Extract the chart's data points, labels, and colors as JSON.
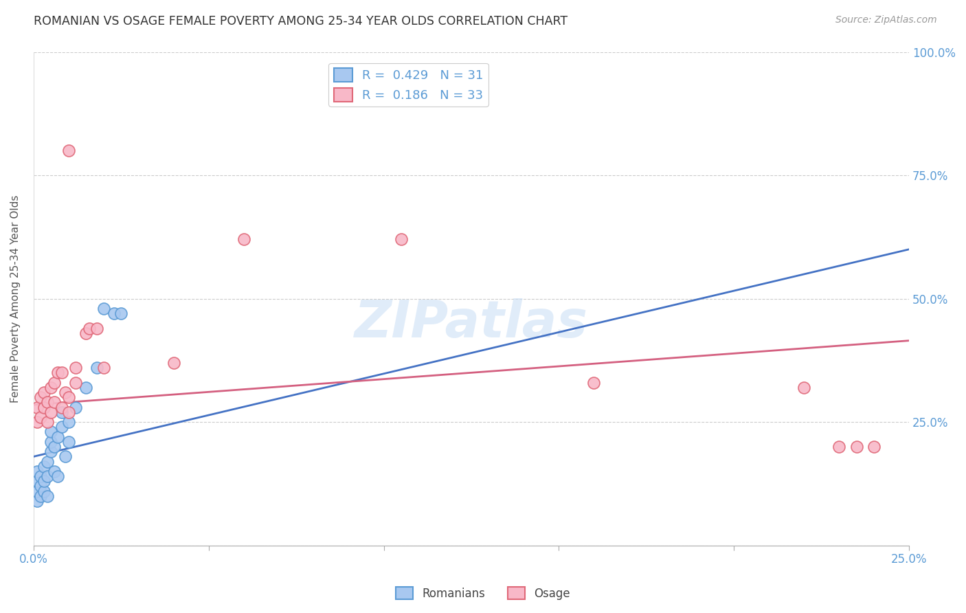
{
  "title": "ROMANIAN VS OSAGE FEMALE POVERTY AMONG 25-34 YEAR OLDS CORRELATION CHART",
  "source": "Source: ZipAtlas.com",
  "ylabel": "Female Poverty Among 25-34 Year Olds",
  "xlim": [
    0.0,
    0.25
  ],
  "ylim": [
    0.0,
    1.0
  ],
  "legend_r1": "0.429",
  "legend_n1": "31",
  "legend_r2": "0.186",
  "legend_n2": "33",
  "color_romanian_face": "#a8c8f0",
  "color_romanian_edge": "#5b9bd5",
  "color_osage_face": "#f8b8c8",
  "color_osage_edge": "#e06878",
  "color_line_romanian": "#4472c4",
  "color_line_osage": "#d46080",
  "color_axis": "#5b9bd5",
  "color_title": "#404040",
  "watermark_text": "ZIPatlas",
  "rom_line_x0": 0.0,
  "rom_line_y0": 0.18,
  "rom_line_x1": 0.25,
  "rom_line_y1": 0.6,
  "osage_line_x0": 0.0,
  "osage_line_y0": 0.285,
  "osage_line_x1": 0.25,
  "osage_line_y1": 0.415,
  "romanians_x": [
    0.001,
    0.001,
    0.001,
    0.001,
    0.002,
    0.002,
    0.002,
    0.003,
    0.003,
    0.003,
    0.004,
    0.004,
    0.004,
    0.005,
    0.005,
    0.005,
    0.006,
    0.006,
    0.007,
    0.007,
    0.008,
    0.008,
    0.009,
    0.01,
    0.01,
    0.012,
    0.015,
    0.018,
    0.02,
    0.023,
    0.025
  ],
  "romanians_y": [
    0.09,
    0.11,
    0.13,
    0.15,
    0.1,
    0.12,
    0.14,
    0.11,
    0.13,
    0.16,
    0.1,
    0.14,
    0.17,
    0.19,
    0.21,
    0.23,
    0.15,
    0.2,
    0.14,
    0.22,
    0.24,
    0.27,
    0.18,
    0.21,
    0.25,
    0.28,
    0.32,
    0.36,
    0.48,
    0.47,
    0.47
  ],
  "osage_x": [
    0.001,
    0.001,
    0.002,
    0.002,
    0.003,
    0.003,
    0.004,
    0.004,
    0.005,
    0.005,
    0.006,
    0.006,
    0.007,
    0.008,
    0.008,
    0.009,
    0.01,
    0.01,
    0.01,
    0.012,
    0.012,
    0.015,
    0.016,
    0.018,
    0.02,
    0.04,
    0.06,
    0.105,
    0.16,
    0.22,
    0.23,
    0.235,
    0.24
  ],
  "osage_y": [
    0.25,
    0.28,
    0.26,
    0.3,
    0.28,
    0.31,
    0.25,
    0.29,
    0.27,
    0.32,
    0.29,
    0.33,
    0.35,
    0.28,
    0.35,
    0.31,
    0.27,
    0.3,
    0.8,
    0.33,
    0.36,
    0.43,
    0.44,
    0.44,
    0.36,
    0.37,
    0.62,
    0.62,
    0.33,
    0.32,
    0.2,
    0.2,
    0.2
  ]
}
